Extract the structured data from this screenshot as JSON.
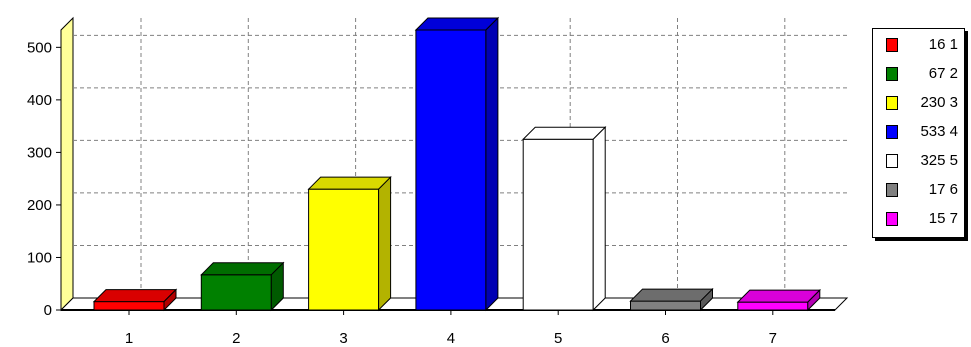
{
  "chart_data": {
    "type": "bar",
    "categories": [
      "1",
      "2",
      "3",
      "4",
      "5",
      "6",
      "7"
    ],
    "values": [
      16,
      67,
      230,
      533,
      325,
      17,
      15
    ],
    "colors": [
      "#ff0000",
      "#008000",
      "#ffff00",
      "#0000ff",
      "#ffffff",
      "#808080",
      "#ff00ff"
    ],
    "yticks": [
      "0",
      "100",
      "200",
      "300",
      "400",
      "500"
    ],
    "ylim": [
      0,
      533
    ],
    "grid": true,
    "three_d": true,
    "legend_position": "right",
    "legend": [
      {
        "label": "16 1",
        "color": "#ff0000"
      },
      {
        "label": "67 2",
        "color": "#008000"
      },
      {
        "label": "230 3",
        "color": "#ffff00"
      },
      {
        "label": "533 4",
        "color": "#0000ff"
      },
      {
        "label": "325 5",
        "color": "#ffffff"
      },
      {
        "label": "17 6",
        "color": "#808080"
      },
      {
        "label": "15 7",
        "color": "#ff00ff"
      }
    ],
    "back_wall_color": "#ffff99"
  }
}
